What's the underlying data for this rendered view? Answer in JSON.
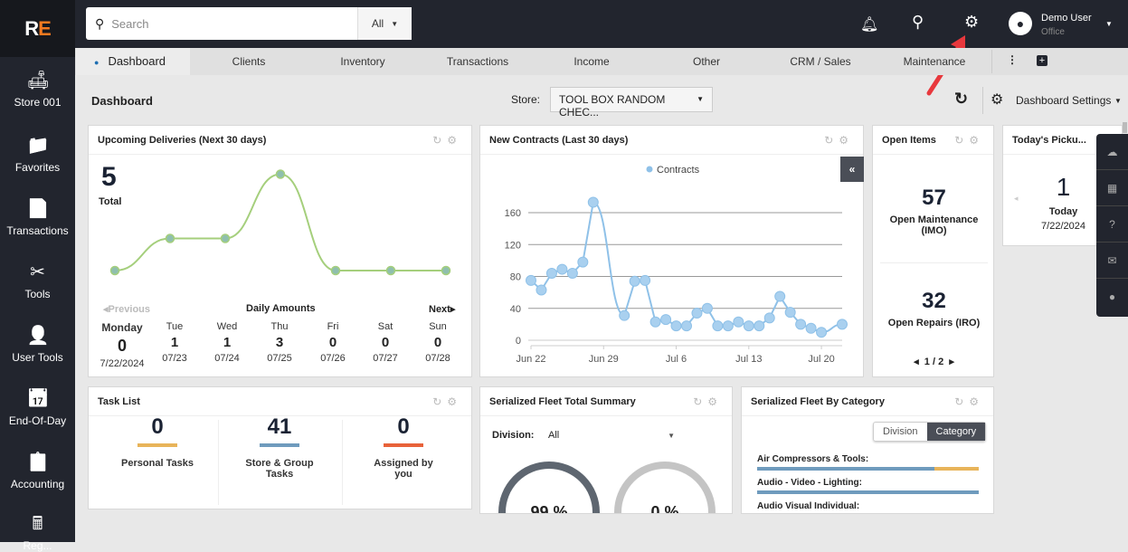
{
  "logo": {
    "r": "R",
    "e": "E"
  },
  "sidebar": {
    "items": [
      {
        "label": "Store 001",
        "icon": "sofa-icon",
        "glyph": "🛋"
      },
      {
        "label": "Favorites",
        "icon": "folder-star-icon",
        "glyph": "📁"
      },
      {
        "label": "Transactions",
        "icon": "document-icon",
        "glyph": "📄"
      },
      {
        "label": "Tools",
        "icon": "tools-icon",
        "glyph": "✂"
      },
      {
        "label": "User Tools",
        "icon": "user-wrench-icon",
        "glyph": "👤"
      },
      {
        "label": "End-Of-Day",
        "icon": "calendar-clock-icon",
        "glyph": "📅"
      },
      {
        "label": "Accounting",
        "icon": "clipboard-icon",
        "glyph": "📋"
      },
      {
        "label": "Reg...",
        "icon": "cash-register-icon",
        "glyph": "🖩"
      }
    ]
  },
  "topbar": {
    "search_placeholder": "Search",
    "search_scope": "All",
    "user_name": "Demo User",
    "user_role": "Office"
  },
  "tabs": [
    "Dashboard",
    "Clients",
    "Inventory",
    "Transactions",
    "Income",
    "Other",
    "CRM / Sales",
    "Maintenance"
  ],
  "header": {
    "title": "Dashboard",
    "store_label": "Store:",
    "store_value": "TOOL BOX RANDOM CHEC...",
    "settings_label": "Dashboard Settings"
  },
  "deliveries": {
    "title": "Upcoming Deliveries (Next 30 days)",
    "total": "5",
    "total_label": "Total",
    "prev": "Previous",
    "next": "Next",
    "caption": "Daily Amounts",
    "days": [
      {
        "name": "Monday",
        "value": "0",
        "date": "7/22/2024"
      },
      {
        "name": "Tue",
        "value": "1",
        "date": "07/23"
      },
      {
        "name": "Wed",
        "value": "1",
        "date": "07/24"
      },
      {
        "name": "Thu",
        "value": "3",
        "date": "07/25"
      },
      {
        "name": "Fri",
        "value": "0",
        "date": "07/26"
      },
      {
        "name": "Sat",
        "value": "0",
        "date": "07/27"
      },
      {
        "name": "Sun",
        "value": "0",
        "date": "07/28"
      }
    ],
    "line_color": "#a5cf7c"
  },
  "chart_data": {
    "type": "line",
    "title": "New Contracts (Last 30 days)",
    "legend": [
      "Contracts"
    ],
    "legend_position": "top",
    "grid": true,
    "color": "#8fc1e8",
    "ylim": [
      0,
      180
    ],
    "yticks": [
      0,
      40,
      80,
      120,
      160
    ],
    "xtick_labels": [
      "Jun 22",
      "Jun 29",
      "Jul 6",
      "Jul 13",
      "Jul 20"
    ],
    "x": [
      "Jun 22",
      "Jun 23",
      "Jun 24",
      "Jun 25",
      "Jun 26",
      "Jun 27",
      "Jun 28",
      "Jun 29",
      "Jun 30",
      "Jul 1",
      "Jul 2",
      "Jul 3",
      "Jul 4",
      "Jul 5",
      "Jul 6",
      "Jul 7",
      "Jul 8",
      "Jul 9",
      "Jul 10",
      "Jul 11",
      "Jul 12",
      "Jul 13",
      "Jul 14",
      "Jul 15",
      "Jul 16",
      "Jul 17",
      "Jul 18",
      "Jul 19",
      "Jul 20",
      "Jul 21",
      "Jul 22"
    ],
    "series": [
      {
        "name": "Contracts",
        "values": [
          75,
          63,
          84,
          89,
          84,
          98,
          173,
          null,
          null,
          31,
          74,
          75,
          23,
          26,
          18,
          18,
          34,
          40,
          18,
          18,
          23,
          18,
          18,
          28,
          55,
          35,
          20,
          15,
          10,
          null,
          20
        ]
      }
    ]
  },
  "open_items": {
    "title": "Open Items",
    "maint_value": "57",
    "maint_label": "Open Maintenance (IMO)",
    "repairs_value": "32",
    "repairs_label": "Open Repairs (IRO)",
    "pager": "1 / 2"
  },
  "pickups": {
    "title": "Today's Picku...",
    "value": "1",
    "label": "Today",
    "date": "7/22/2024"
  },
  "tasks": {
    "title": "Task List",
    "items": [
      {
        "value": "0",
        "label": "Personal Tasks",
        "color": "#e8b45a"
      },
      {
        "value": "41",
        "label": "Store & Group Tasks",
        "color": "#6f9bbd"
      },
      {
        "value": "0",
        "label": "Assigned by you",
        "color": "#e8623a"
      }
    ]
  },
  "fleet_summary": {
    "title": "Serialized Fleet Total Summary",
    "division_label": "Division:",
    "division_value": "All",
    "gauges": [
      {
        "value": "99 %",
        "color": "#5e6670"
      },
      {
        "value": "0 %",
        "color": "#c4c4c4"
      }
    ]
  },
  "fleet_category": {
    "title": "Serialized Fleet By Category",
    "toggle": [
      "Division",
      "Category"
    ],
    "active": "Category",
    "items": [
      {
        "label": "Air Compressors & Tools:",
        "fraction": 0.8,
        "colors": [
          "#6f9bbd",
          "#e8b45a"
        ]
      },
      {
        "label": "Audio - Video - Lighting:",
        "fraction": 1.0,
        "colors": [
          "#6f9bbd",
          "#e8b45a"
        ]
      },
      {
        "label": "Audio Visual Individual:",
        "fraction": 1.0,
        "colors": [
          "#6f9bbd",
          "#e8b45a"
        ]
      }
    ]
  }
}
